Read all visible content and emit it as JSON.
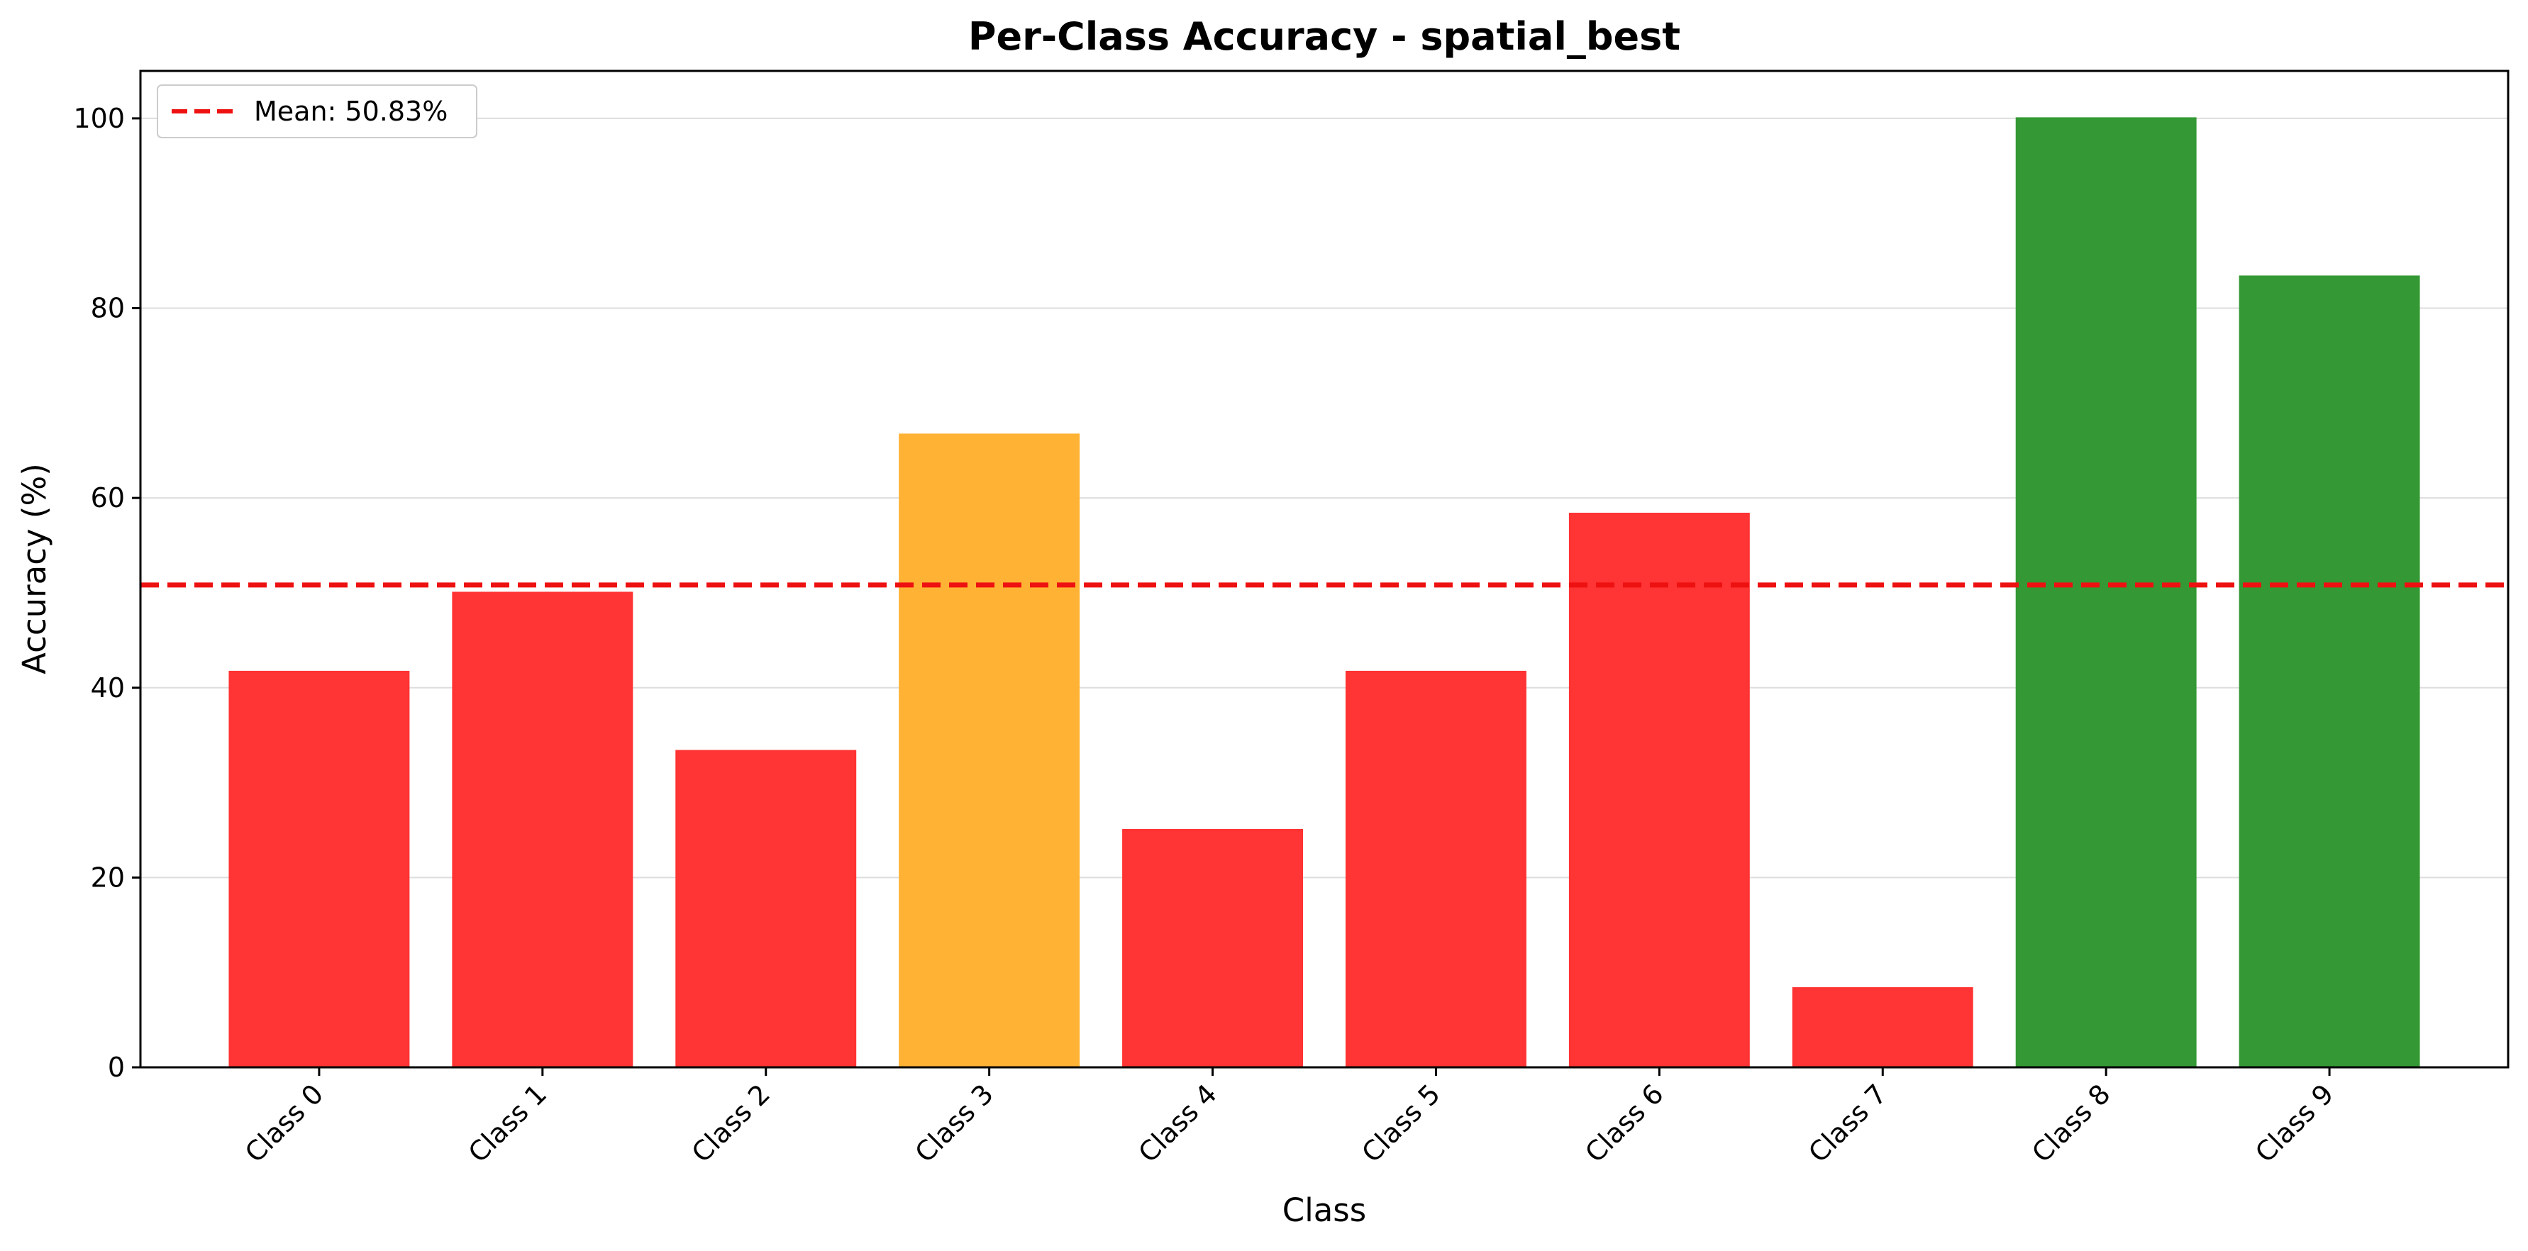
{
  "chart_data": {
    "type": "bar",
    "title": "Per-Class Accuracy - spatial_best",
    "xlabel": "Class",
    "ylabel": "Accuracy (%)",
    "ylim": [
      0,
      105
    ],
    "yticks": [
      0,
      20,
      40,
      60,
      80,
      100
    ],
    "grid": "y",
    "categories": [
      "Class 0",
      "Class 1",
      "Class 2",
      "Class 3",
      "Class 4",
      "Class 5",
      "Class 6",
      "Class 7",
      "Class 8",
      "Class 9"
    ],
    "values": [
      41.67,
      50.0,
      33.33,
      66.67,
      25.0,
      41.67,
      58.33,
      8.33,
      100.0,
      83.33
    ],
    "bar_colors": [
      "#ff3333",
      "#ff3333",
      "#ff3333",
      "#ffb233",
      "#ff3333",
      "#ff3333",
      "#ff3333",
      "#ff3333",
      "#339933",
      "#339933"
    ],
    "mean_line": {
      "value": 50.83,
      "label": "Mean: 50.83%",
      "color": "#ee1111"
    },
    "legend_position": "top-left"
  }
}
